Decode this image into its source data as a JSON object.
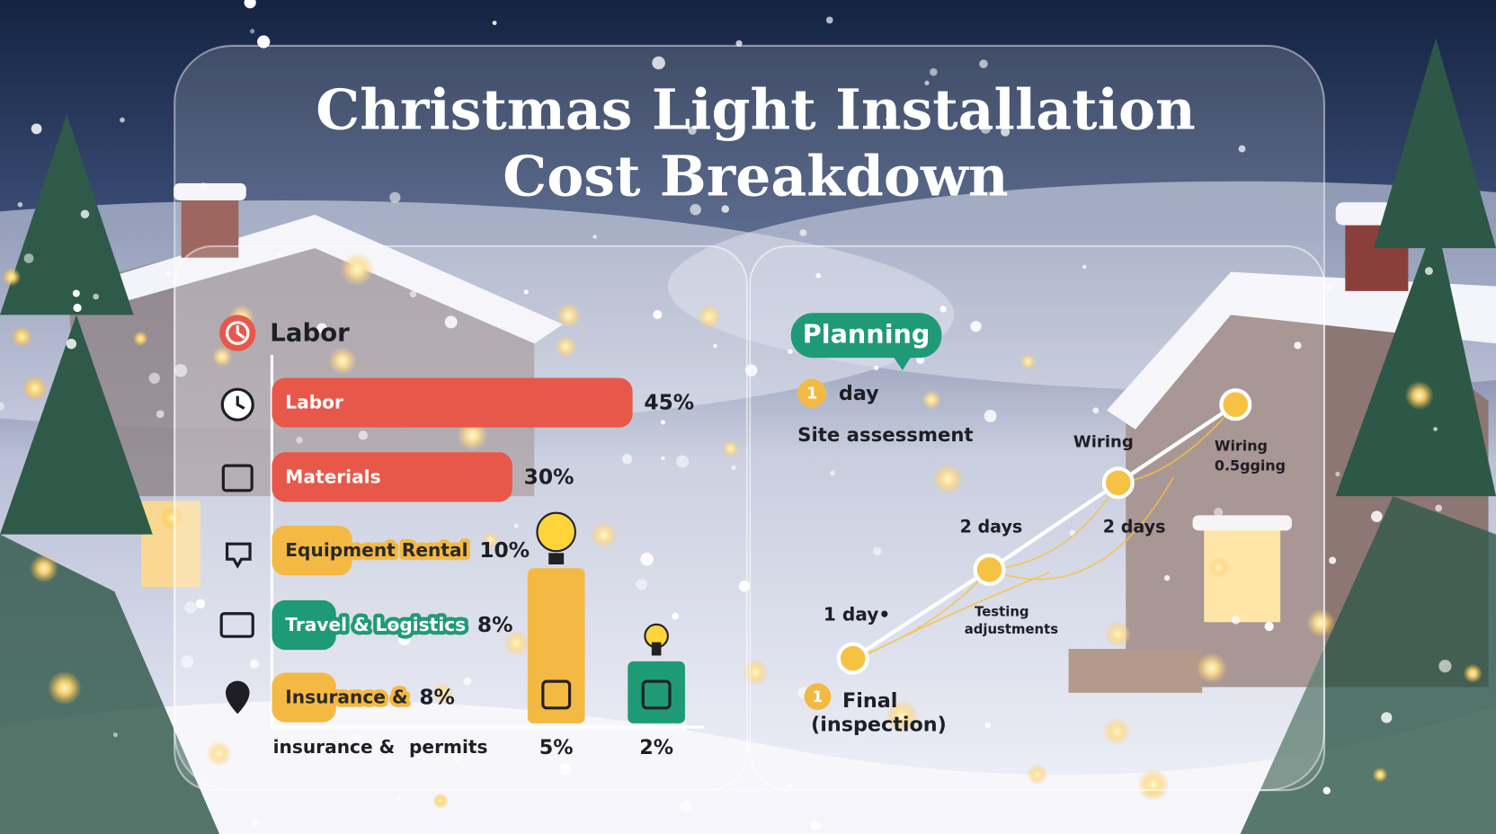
{
  "header": {
    "title": [
      "Christmas Light Installation",
      "Cost Breakdown"
    ]
  },
  "chart_data": [
    {
      "type": "hbar",
      "header": "Labor",
      "categories": [
        "Labor",
        "Materials",
        "Equipment Rental",
        "Travel & Logistics",
        "Insurance &"
      ],
      "values": [
        45,
        30,
        10,
        8,
        8
      ],
      "value_labels": [
        "45%",
        "30%",
        "10%",
        "8%",
        "8%"
      ],
      "colors": [
        "#e8584a",
        "#e8584a",
        "#f4b942",
        "#1f9a76",
        "#f4b942"
      ],
      "xlim": [
        0,
        50
      ],
      "footer_labels": [
        "insurance &",
        "permits"
      ]
    },
    {
      "type": "bar",
      "categories": [
        null,
        null
      ],
      "values": [
        5,
        2
      ],
      "value_labels": [
        "5%",
        "2%"
      ],
      "colors": [
        "#f4b942",
        "#1f9a76"
      ],
      "ylim": [
        0,
        8
      ]
    }
  ],
  "timeline": {
    "badge": "Planning",
    "start": {
      "number": 1,
      "unit": "day",
      "label": "Site assessment"
    },
    "labels": [
      "Wiring",
      "Wiring",
      "0.5gging",
      "2 days",
      "2 days",
      "1 day•",
      "Testing",
      "adjustments"
    ],
    "end": {
      "number": 1,
      "label": [
        "Final",
        "(inspection)"
      ]
    }
  }
}
